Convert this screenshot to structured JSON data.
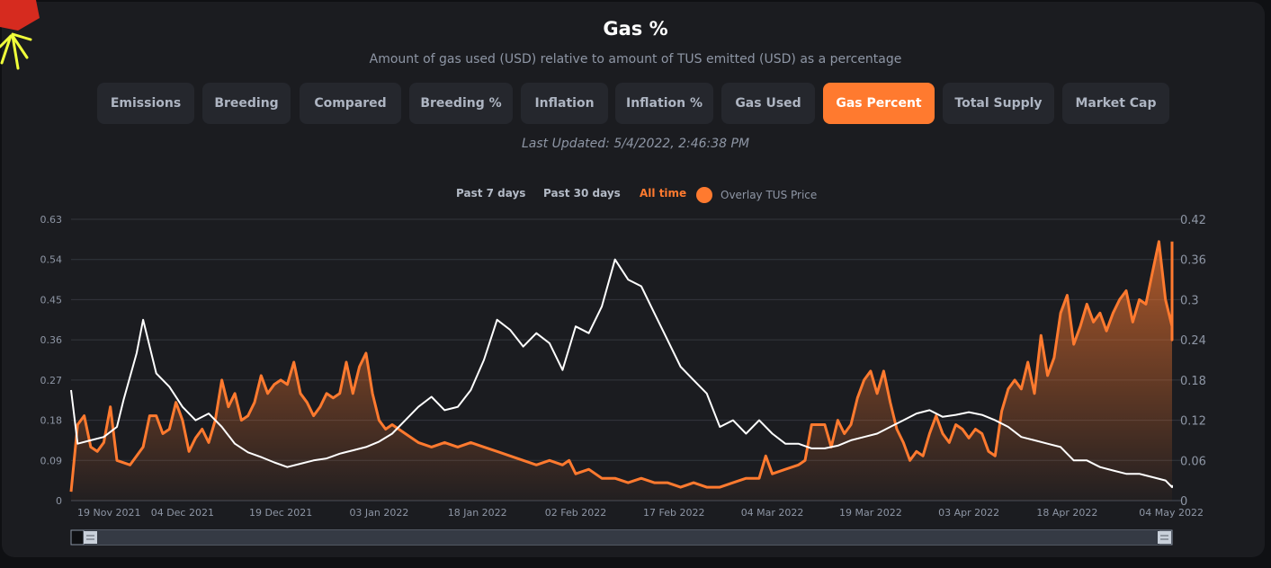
{
  "page": {
    "title": "Gas %",
    "subtitle": "Amount of gas used (USD) relative to amount of TUS emitted (USD) as a percentage",
    "last_updated": "Last Updated: 5/4/2022, 2:46:38 PM"
  },
  "tabs": [
    {
      "label": "Emissions",
      "active": false
    },
    {
      "label": "Breeding",
      "active": false
    },
    {
      "label": "Compared",
      "active": false
    },
    {
      "label": "Breeding %",
      "active": false
    },
    {
      "label": "Inflation",
      "active": false
    },
    {
      "label": "Inflation %",
      "active": false
    },
    {
      "label": "Gas Used",
      "active": false
    },
    {
      "label": "Gas Percent",
      "active": true
    },
    {
      "label": "Total Supply",
      "active": false
    },
    {
      "label": "Market Cap",
      "active": false
    }
  ],
  "ranges": [
    {
      "label": "Past 7 days",
      "active": false
    },
    {
      "label": "Past 30 days",
      "active": false
    },
    {
      "label": "All time",
      "active": true
    }
  ],
  "overlay": {
    "label": "Overlay TUS Price",
    "enabled": true
  },
  "colors": {
    "accent": "#ff7a2f",
    "gas_line": "#ff7a2f",
    "price_line": "#ffffff",
    "grid": "#33363d",
    "text": "#8e96a5"
  },
  "chart_data": {
    "type": "line",
    "x_start": "2021-11-17",
    "x_end": "2022-05-04",
    "x_tick_labels": [
      "19 Nov 2021",
      "04 Dec 2021",
      "19 Dec 2021",
      "03 Jan 2022",
      "18 Jan 2022",
      "02 Feb 2022",
      "17 Feb 2022",
      "04 Mar 2022",
      "19 Mar 2022",
      "03 Apr 2022",
      "18 Apr 2022",
      "04 May 2022"
    ],
    "x_tick_dates": [
      "2021-11-19",
      "2021-12-04",
      "2021-12-19",
      "2022-01-03",
      "2022-01-18",
      "2022-02-02",
      "2022-02-17",
      "2022-03-04",
      "2022-03-19",
      "2022-04-03",
      "2022-04-18",
      "2022-05-04"
    ],
    "y_left": {
      "ylim": [
        0,
        0.63
      ],
      "ticks": [
        "0",
        "0.09",
        "0.18",
        "0.27",
        "0.36",
        "0.45",
        "0.54",
        "0.63"
      ]
    },
    "y_right": {
      "ylim": [
        0,
        0.42
      ],
      "ticks": [
        "0",
        "0.06",
        "0.12",
        "0.18",
        "0.24",
        "0.3",
        "0.36",
        "0.42"
      ]
    },
    "grid": true,
    "series": [
      {
        "axis": "left",
        "color": "#ff7a2f",
        "fill": true,
        "points": [
          [
            "2021-11-17",
            0.02
          ],
          [
            "2021-11-18",
            0.17
          ],
          [
            "2021-11-19",
            0.19
          ],
          [
            "2021-11-20",
            0.12
          ],
          [
            "2021-11-21",
            0.11
          ],
          [
            "2021-11-22",
            0.13
          ],
          [
            "2021-11-23",
            0.21
          ],
          [
            "2021-11-24",
            0.09
          ],
          [
            "2021-11-26",
            0.08
          ],
          [
            "2021-11-28",
            0.12
          ],
          [
            "2021-11-29",
            0.19
          ],
          [
            "2021-11-30",
            0.19
          ],
          [
            "2021-12-01",
            0.15
          ],
          [
            "2021-12-02",
            0.16
          ],
          [
            "2021-12-03",
            0.22
          ],
          [
            "2021-12-04",
            0.18
          ],
          [
            "2021-12-05",
            0.11
          ],
          [
            "2021-12-06",
            0.14
          ],
          [
            "2021-12-07",
            0.16
          ],
          [
            "2021-12-08",
            0.13
          ],
          [
            "2021-12-09",
            0.18
          ],
          [
            "2021-12-10",
            0.27
          ],
          [
            "2021-12-11",
            0.21
          ],
          [
            "2021-12-12",
            0.24
          ],
          [
            "2021-12-13",
            0.18
          ],
          [
            "2021-12-14",
            0.19
          ],
          [
            "2021-12-15",
            0.22
          ],
          [
            "2021-12-16",
            0.28
          ],
          [
            "2021-12-17",
            0.24
          ],
          [
            "2021-12-18",
            0.26
          ],
          [
            "2021-12-19",
            0.27
          ],
          [
            "2021-12-20",
            0.26
          ],
          [
            "2021-12-21",
            0.31
          ],
          [
            "2021-12-22",
            0.24
          ],
          [
            "2021-12-23",
            0.22
          ],
          [
            "2021-12-24",
            0.19
          ],
          [
            "2021-12-25",
            0.21
          ],
          [
            "2021-12-26",
            0.24
          ],
          [
            "2021-12-27",
            0.23
          ],
          [
            "2021-12-28",
            0.24
          ],
          [
            "2021-12-29",
            0.31
          ],
          [
            "2021-12-30",
            0.24
          ],
          [
            "2021-12-31",
            0.3
          ],
          [
            "2022-01-01",
            0.33
          ],
          [
            "2022-01-02",
            0.24
          ],
          [
            "2022-01-03",
            0.18
          ],
          [
            "2022-01-04",
            0.16
          ],
          [
            "2022-01-05",
            0.17
          ],
          [
            "2022-01-07",
            0.15
          ],
          [
            "2022-01-09",
            0.13
          ],
          [
            "2022-01-11",
            0.12
          ],
          [
            "2022-01-13",
            0.13
          ],
          [
            "2022-01-15",
            0.12
          ],
          [
            "2022-01-17",
            0.13
          ],
          [
            "2022-01-19",
            0.12
          ],
          [
            "2022-01-21",
            0.11
          ],
          [
            "2022-01-23",
            0.1
          ],
          [
            "2022-01-25",
            0.09
          ],
          [
            "2022-01-27",
            0.08
          ],
          [
            "2022-01-29",
            0.09
          ],
          [
            "2022-01-31",
            0.08
          ],
          [
            "2022-02-01",
            0.09
          ],
          [
            "2022-02-02",
            0.06
          ],
          [
            "2022-02-04",
            0.07
          ],
          [
            "2022-02-06",
            0.05
          ],
          [
            "2022-02-08",
            0.05
          ],
          [
            "2022-02-10",
            0.04
          ],
          [
            "2022-02-12",
            0.05
          ],
          [
            "2022-02-14",
            0.04
          ],
          [
            "2022-02-16",
            0.04
          ],
          [
            "2022-02-18",
            0.03
          ],
          [
            "2022-02-20",
            0.04
          ],
          [
            "2022-02-22",
            0.03
          ],
          [
            "2022-02-24",
            0.03
          ],
          [
            "2022-02-26",
            0.04
          ],
          [
            "2022-02-28",
            0.05
          ],
          [
            "2022-03-02",
            0.05
          ],
          [
            "2022-03-03",
            0.1
          ],
          [
            "2022-03-04",
            0.06
          ],
          [
            "2022-03-06",
            0.07
          ],
          [
            "2022-03-08",
            0.08
          ],
          [
            "2022-03-09",
            0.09
          ],
          [
            "2022-03-10",
            0.17
          ],
          [
            "2022-03-12",
            0.17
          ],
          [
            "2022-03-13",
            0.12
          ],
          [
            "2022-03-14",
            0.18
          ],
          [
            "2022-03-15",
            0.15
          ],
          [
            "2022-03-16",
            0.17
          ],
          [
            "2022-03-17",
            0.23
          ],
          [
            "2022-03-18",
            0.27
          ],
          [
            "2022-03-19",
            0.29
          ],
          [
            "2022-03-20",
            0.24
          ],
          [
            "2022-03-21",
            0.29
          ],
          [
            "2022-03-22",
            0.22
          ],
          [
            "2022-03-23",
            0.16
          ],
          [
            "2022-03-24",
            0.13
          ],
          [
            "2022-03-25",
            0.09
          ],
          [
            "2022-03-26",
            0.11
          ],
          [
            "2022-03-27",
            0.1
          ],
          [
            "2022-03-28",
            0.15
          ],
          [
            "2022-03-29",
            0.19
          ],
          [
            "2022-03-30",
            0.15
          ],
          [
            "2022-03-31",
            0.13
          ],
          [
            "2022-04-01",
            0.17
          ],
          [
            "2022-04-02",
            0.16
          ],
          [
            "2022-04-03",
            0.14
          ],
          [
            "2022-04-04",
            0.16
          ],
          [
            "2022-04-05",
            0.15
          ],
          [
            "2022-04-06",
            0.11
          ],
          [
            "2022-04-07",
            0.1
          ],
          [
            "2022-04-08",
            0.2
          ],
          [
            "2022-04-09",
            0.25
          ],
          [
            "2022-04-10",
            0.27
          ],
          [
            "2022-04-11",
            0.25
          ],
          [
            "2022-04-12",
            0.31
          ],
          [
            "2022-04-13",
            0.24
          ],
          [
            "2022-04-14",
            0.37
          ],
          [
            "2022-04-15",
            0.28
          ],
          [
            "2022-04-16",
            0.32
          ],
          [
            "2022-04-17",
            0.42
          ],
          [
            "2022-04-18",
            0.46
          ],
          [
            "2022-04-19",
            0.35
          ],
          [
            "2022-04-20",
            0.39
          ],
          [
            "2022-04-21",
            0.44
          ],
          [
            "2022-04-22",
            0.4
          ],
          [
            "2022-04-23",
            0.42
          ],
          [
            "2022-04-24",
            0.38
          ],
          [
            "2022-04-25",
            0.42
          ],
          [
            "2022-04-26",
            0.45
          ],
          [
            "2022-04-27",
            0.47
          ],
          [
            "2022-04-28",
            0.4
          ],
          [
            "2022-04-29",
            0.45
          ],
          [
            "2022-04-30",
            0.44
          ],
          [
            "2022-05-01",
            0.51
          ],
          [
            "2022-05-02",
            0.58
          ],
          [
            "2022-05-03",
            0.45
          ],
          [
            "2022-05-04",
            0.39
          ],
          [
            "2022-05-05",
            0.36
          ],
          [
            "2022-05-06",
            0.38
          ],
          [
            "2022-05-07",
            0.52
          ],
          [
            "2022-05-08",
            0.58
          ]
        ]
      },
      {
        "axis": "right",
        "color": "#ffffff",
        "fill": false,
        "points": [
          [
            "2021-11-17",
            0.165
          ],
          [
            "2021-11-18",
            0.085
          ],
          [
            "2021-11-20",
            0.09
          ],
          [
            "2021-11-22",
            0.095
          ],
          [
            "2021-11-24",
            0.11
          ],
          [
            "2021-11-25",
            0.15
          ],
          [
            "2021-11-27",
            0.22
          ],
          [
            "2021-11-28",
            0.27
          ],
          [
            "2021-11-30",
            0.19
          ],
          [
            "2021-12-02",
            0.17
          ],
          [
            "2021-12-04",
            0.14
          ],
          [
            "2021-12-06",
            0.12
          ],
          [
            "2021-12-08",
            0.13
          ],
          [
            "2021-12-10",
            0.11
          ],
          [
            "2021-12-12",
            0.085
          ],
          [
            "2021-12-14",
            0.072
          ],
          [
            "2021-12-16",
            0.065
          ],
          [
            "2021-12-18",
            0.057
          ],
          [
            "2021-12-20",
            0.05
          ],
          [
            "2021-12-22",
            0.055
          ],
          [
            "2021-12-24",
            0.06
          ],
          [
            "2021-12-26",
            0.063
          ],
          [
            "2021-12-28",
            0.07
          ],
          [
            "2021-12-30",
            0.075
          ],
          [
            "2022-01-01",
            0.08
          ],
          [
            "2022-01-03",
            0.088
          ],
          [
            "2022-01-05",
            0.1
          ],
          [
            "2022-01-07",
            0.12
          ],
          [
            "2022-01-09",
            0.14
          ],
          [
            "2022-01-11",
            0.155
          ],
          [
            "2022-01-13",
            0.135
          ],
          [
            "2022-01-15",
            0.14
          ],
          [
            "2022-01-17",
            0.165
          ],
          [
            "2022-01-19",
            0.21
          ],
          [
            "2022-01-21",
            0.27
          ],
          [
            "2022-01-23",
            0.255
          ],
          [
            "2022-01-25",
            0.23
          ],
          [
            "2022-01-27",
            0.25
          ],
          [
            "2022-01-29",
            0.235
          ],
          [
            "2022-01-31",
            0.195
          ],
          [
            "2022-02-02",
            0.26
          ],
          [
            "2022-02-04",
            0.25
          ],
          [
            "2022-02-06",
            0.29
          ],
          [
            "2022-02-08",
            0.36
          ],
          [
            "2022-02-10",
            0.33
          ],
          [
            "2022-02-12",
            0.32
          ],
          [
            "2022-02-14",
            0.28
          ],
          [
            "2022-02-16",
            0.24
          ],
          [
            "2022-02-18",
            0.2
          ],
          [
            "2022-02-20",
            0.18
          ],
          [
            "2022-02-22",
            0.16
          ],
          [
            "2022-02-24",
            0.11
          ],
          [
            "2022-02-26",
            0.12
          ],
          [
            "2022-02-28",
            0.1
          ],
          [
            "2022-03-02",
            0.12
          ],
          [
            "2022-03-04",
            0.1
          ],
          [
            "2022-03-06",
            0.085
          ],
          [
            "2022-03-08",
            0.085
          ],
          [
            "2022-03-10",
            0.078
          ],
          [
            "2022-03-12",
            0.078
          ],
          [
            "2022-03-14",
            0.082
          ],
          [
            "2022-03-16",
            0.09
          ],
          [
            "2022-03-18",
            0.095
          ],
          [
            "2022-03-20",
            0.1
          ],
          [
            "2022-03-22",
            0.11
          ],
          [
            "2022-03-24",
            0.12
          ],
          [
            "2022-03-26",
            0.13
          ],
          [
            "2022-03-28",
            0.135
          ],
          [
            "2022-03-30",
            0.125
          ],
          [
            "2022-04-01",
            0.128
          ],
          [
            "2022-04-03",
            0.132
          ],
          [
            "2022-04-05",
            0.128
          ],
          [
            "2022-04-07",
            0.12
          ],
          [
            "2022-04-09",
            0.11
          ],
          [
            "2022-04-11",
            0.095
          ],
          [
            "2022-04-13",
            0.09
          ],
          [
            "2022-04-15",
            0.085
          ],
          [
            "2022-04-17",
            0.08
          ],
          [
            "2022-04-19",
            0.06
          ],
          [
            "2022-04-21",
            0.06
          ],
          [
            "2022-04-23",
            0.05
          ],
          [
            "2022-04-25",
            0.045
          ],
          [
            "2022-04-27",
            0.04
          ],
          [
            "2022-04-29",
            0.04
          ],
          [
            "2022-05-01",
            0.035
          ],
          [
            "2022-05-03",
            0.03
          ],
          [
            "2022-05-05",
            0.02
          ],
          [
            "2022-05-07",
            0.022
          ],
          [
            "2022-05-08",
            0.02
          ]
        ]
      }
    ]
  }
}
